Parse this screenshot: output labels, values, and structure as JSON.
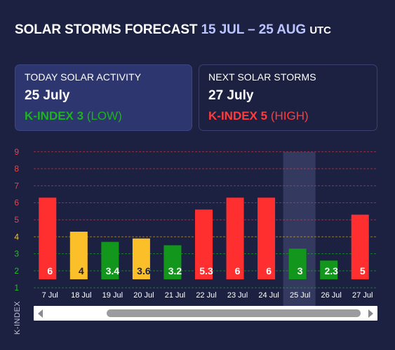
{
  "header": {
    "title": "SOLAR STORMS FORECAST",
    "range": "15 JUL – 25 AUG",
    "tz": "UTC"
  },
  "today": {
    "label": "TODAY SOLAR ACTIVITY",
    "date": "25 July",
    "kindex": "K-INDEX 3",
    "level": "(LOW)",
    "color": "#1db31d"
  },
  "next": {
    "label": "NEXT SOLAR STORMS",
    "date": "27 July",
    "kindex": "K-INDEX 5",
    "level": "(HIGH)",
    "color": "#ff3b3b"
  },
  "colors": {
    "low": "#12961c",
    "moderate": "#fbbf2a",
    "high": "#ff2f2f",
    "highlight": "#3b4068"
  },
  "chart_data": {
    "type": "bar",
    "categories": [
      "7 Jul",
      "18 Jul",
      "19 Jul",
      "20 Jul",
      "21 Jul",
      "22 Jul",
      "23 Jul",
      "24 Jul",
      "25 Jul",
      "26 Jul",
      "27 Jul"
    ],
    "values": [
      6,
      4,
      3.4,
      3.6,
      3.2,
      5.3,
      6,
      6,
      3,
      2.3,
      5
    ],
    "value_labels": [
      "6",
      "4",
      "3.4",
      "3.6",
      "3.2",
      "5.3",
      "6",
      "6",
      "3",
      "2.3",
      "5"
    ],
    "levels": [
      "high",
      "moderate",
      "low",
      "moderate",
      "low",
      "high",
      "high",
      "high",
      "low",
      "low",
      "high"
    ],
    "highlight_index": 8,
    "yticks": [
      1,
      2,
      3,
      4,
      5,
      6,
      7,
      8,
      9
    ],
    "ytick_colors": [
      "#19c419",
      "#19c419",
      "#19c419",
      "#fbbf2a",
      "#ff3b3b",
      "#ff3b3b",
      "#ff3b3b",
      "#ff3b3b",
      "#ff3b3b"
    ],
    "ylim": [
      1,
      9
    ],
    "ylabel": "K-INDEX",
    "xlabel": "",
    "grid": true
  }
}
